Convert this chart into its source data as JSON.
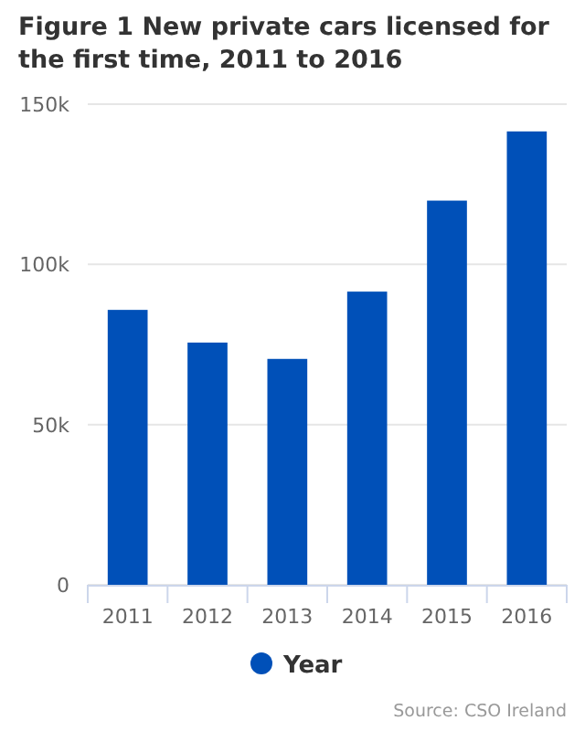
{
  "chart_data": {
    "type": "bar",
    "title": "Figure 1 New private cars licensed for the first time, 2011 to 2016",
    "categories": [
      "2011",
      "2012",
      "2013",
      "2014",
      "2015",
      "2016"
    ],
    "series": [
      {
        "name": "Year",
        "color": "#0050b8",
        "values": [
          85800,
          75600,
          70500,
          91500,
          119900,
          141500
        ]
      }
    ],
    "ylim": [
      0,
      150000
    ],
    "yticks": [
      {
        "value": 0,
        "label": "0"
      },
      {
        "value": 50000,
        "label": "50k"
      },
      {
        "value": 100000,
        "label": "100k"
      },
      {
        "value": 150000,
        "label": "150k"
      }
    ],
    "grid": "y",
    "legend": "bottom",
    "annotations": [
      "Source: CSO Ireland"
    ]
  }
}
